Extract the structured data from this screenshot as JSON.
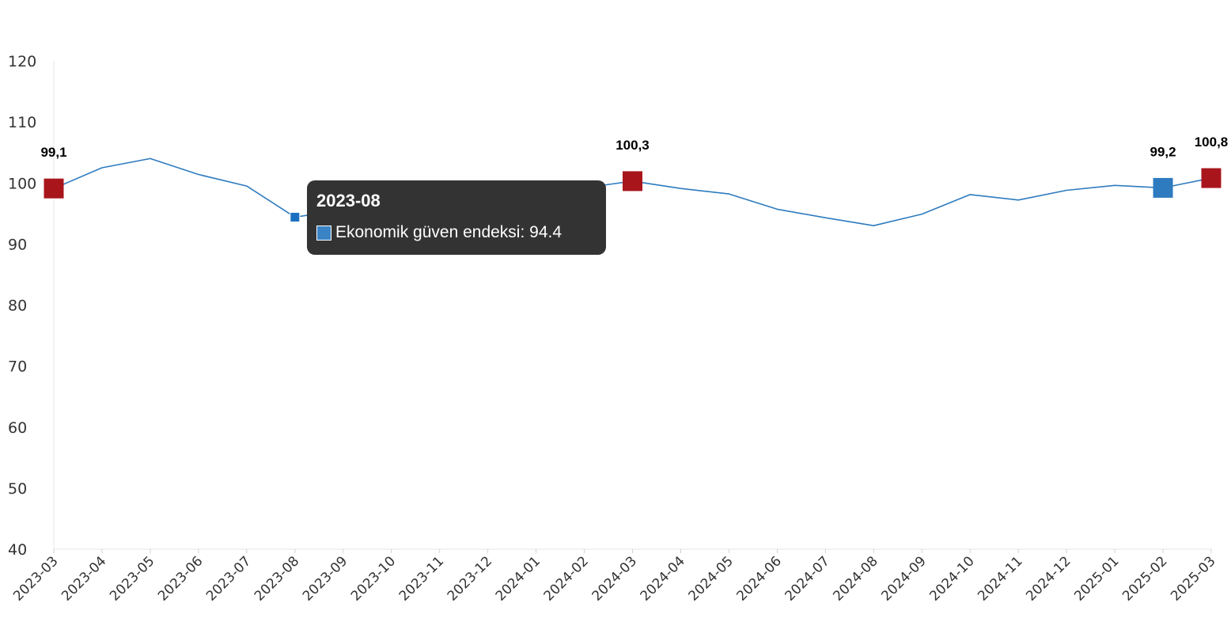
{
  "chart_data": {
    "type": "line",
    "categories": [
      "2023-03",
      "2023-04",
      "2023-05",
      "2023-06",
      "2023-07",
      "2023-08",
      "2023-09",
      "2023-10",
      "2023-11",
      "2023-12",
      "2024-01",
      "2024-02",
      "2024-03",
      "2024-04",
      "2024-05",
      "2024-06",
      "2024-07",
      "2024-08",
      "2024-09",
      "2024-10",
      "2024-11",
      "2024-12",
      "2025-01",
      "2025-02",
      "2025-03"
    ],
    "series": [
      {
        "name": "Ekonomik güven endeksi",
        "color": "#2e7bbf",
        "values": [
          99.1,
          102.5,
          104.0,
          101.4,
          99.5,
          94.4,
          95.6,
          96.8,
          95.3,
          96.4,
          99.6,
          99.2,
          100.3,
          99.1,
          98.2,
          95.7,
          94.3,
          93.0,
          94.9,
          98.1,
          97.2,
          98.8,
          99.6,
          99.2,
          100.8
        ]
      }
    ],
    "yticks": [
      "40",
      "50",
      "60",
      "70",
      "80",
      "90",
      "100",
      "110",
      "120"
    ],
    "ylim": [
      40,
      120
    ],
    "grid": false,
    "highlights": [
      {
        "index": 0,
        "label": "99,1",
        "color": "#a8161c"
      },
      {
        "index": 12,
        "label": "100,3",
        "color": "#a8161c"
      },
      {
        "index": 23,
        "label": "99,2",
        "color": "#2e7bbf"
      },
      {
        "index": 24,
        "label": "100,8",
        "color": "#a8161c"
      }
    ],
    "hover_index": 5
  },
  "tooltip": {
    "title": "2023-08",
    "series_label": "Ekonomik güven endeksi: 94.4",
    "swatch_color": "#3a83c4"
  }
}
